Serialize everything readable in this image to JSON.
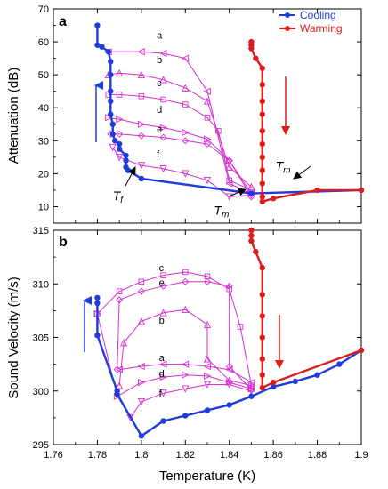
{
  "chart_data": [
    {
      "type": "line",
      "panel": "a",
      "xlabel": "",
      "ylabel": "Attenuation (dB)",
      "xlim": [
        1.76,
        1.9
      ],
      "ylim": [
        5,
        70
      ],
      "yticks": [
        10,
        20,
        30,
        40,
        50,
        60,
        70
      ],
      "legend": {
        "placement": "top-right",
        "entries": [
          {
            "name": "Cooling",
            "color": "#1f3bdc"
          },
          {
            "name": "Warming",
            "color": "#dd1d1d"
          }
        ]
      },
      "series": [
        {
          "name": "Cooling",
          "color": "#1f3bdc",
          "points": [
            [
              1.78,
              65
            ],
            [
              1.78,
              59
            ],
            [
              1.782,
              58.5
            ],
            [
              1.785,
              57
            ],
            [
              1.786,
              54
            ],
            [
              1.786,
              50
            ],
            [
              1.786,
              45
            ],
            [
              1.786,
              42
            ],
            [
              1.786,
              38
            ],
            [
              1.787,
              35
            ],
            [
              1.787,
              32
            ],
            [
              1.788,
              30
            ],
            [
              1.79,
              29
            ],
            [
              1.79,
              27.5
            ],
            [
              1.793,
              25.5
            ],
            [
              1.793,
              24
            ],
            [
              1.793,
              22
            ],
            [
              1.794,
              21
            ],
            [
              1.8,
              18.5
            ],
            [
              1.85,
              14
            ],
            [
              1.9,
              15
            ]
          ]
        },
        {
          "name": "Warming",
          "color": "#dd1d1d",
          "points": [
            [
              1.85,
              60
            ],
            [
              1.85,
              59
            ],
            [
              1.85,
              58
            ],
            [
              1.852,
              55
            ],
            [
              1.855,
              52
            ],
            [
              1.855,
              47
            ],
            [
              1.855,
              42
            ],
            [
              1.855,
              38
            ],
            [
              1.855,
              33
            ],
            [
              1.855,
              29
            ],
            [
              1.855,
              25
            ],
            [
              1.855,
              21
            ],
            [
              1.855,
              17
            ],
            [
              1.855,
              13
            ],
            [
              1.855,
              11.5
            ],
            [
              1.86,
              12.5
            ],
            [
              1.88,
              15
            ],
            [
              1.9,
              15
            ]
          ]
        },
        {
          "name": "a",
          "color": "#d62ed0",
          "marker": "triangle-left",
          "points": [
            [
              1.785,
              57
            ],
            [
              1.8,
              57
            ],
            [
              1.81,
              56.5
            ],
            [
              1.82,
              55
            ],
            [
              1.83,
              45
            ],
            [
              1.84,
              17
            ],
            [
              1.85,
              14
            ]
          ]
        },
        {
          "name": "b",
          "color": "#d62ed0",
          "marker": "triangle-up",
          "points": [
            [
              1.785,
              50
            ],
            [
              1.79,
              50.5
            ],
            [
              1.8,
              50
            ],
            [
              1.81,
              48.5
            ],
            [
              1.82,
              46
            ],
            [
              1.83,
              42
            ],
            [
              1.84,
              22
            ],
            [
              1.85,
              16
            ]
          ]
        },
        {
          "name": "c",
          "color": "#d62ed0",
          "marker": "square",
          "points": [
            [
              1.785,
              44
            ],
            [
              1.79,
              44
            ],
            [
              1.8,
              43.5
            ],
            [
              1.81,
              42.5
            ],
            [
              1.82,
              41
            ],
            [
              1.83,
              37
            ],
            [
              1.835,
              33
            ],
            [
              1.84,
              18
            ],
            [
              1.85,
              15
            ]
          ]
        },
        {
          "name": "d",
          "color": "#d62ed0",
          "marker": "triangle-right",
          "points": [
            [
              1.785,
              37
            ],
            [
              1.79,
              36.5
            ],
            [
              1.8,
              35
            ],
            [
              1.81,
              34
            ],
            [
              1.82,
              32.5
            ],
            [
              1.83,
              30.5
            ],
            [
              1.84,
              24
            ],
            [
              1.85,
              14
            ]
          ]
        },
        {
          "name": "e",
          "color": "#d62ed0",
          "marker": "diamond",
          "points": [
            [
              1.786,
              32
            ],
            [
              1.79,
              32
            ],
            [
              1.8,
              31.5
            ],
            [
              1.81,
              31
            ],
            [
              1.82,
              30
            ],
            [
              1.83,
              29
            ],
            [
              1.84,
              24
            ],
            [
              1.85,
              13
            ]
          ]
        },
        {
          "name": "f",
          "color": "#d62ed0",
          "marker": "triangle-down",
          "points": [
            [
              1.787,
              28
            ],
            [
              1.79,
              25
            ],
            [
              1.8,
              22.5
            ],
            [
              1.81,
              21.5
            ],
            [
              1.82,
              20
            ],
            [
              1.83,
              18
            ],
            [
              1.84,
              13
            ],
            [
              1.85,
              13.5
            ]
          ]
        }
      ],
      "annotations": [
        {
          "text": "a",
          "x": 1.807,
          "y": 61
        },
        {
          "text": "b",
          "x": 1.807,
          "y": 53.5
        },
        {
          "text": "c",
          "x": 1.807,
          "y": 46.5
        },
        {
          "text": "d",
          "x": 1.807,
          "y": 38.5
        },
        {
          "text": "e",
          "x": 1.807,
          "y": 32.5
        },
        {
          "text": "f",
          "x": 1.807,
          "y": 25
        },
        {
          "text": "T",
          "sub": "f",
          "x": 1.787,
          "y": 12
        },
        {
          "text": "T",
          "sub": "m'",
          "x": 1.833,
          "y": 7.5
        },
        {
          "text": "T",
          "sub": "m",
          "x": 1.861,
          "y": 21
        }
      ]
    },
    {
      "type": "line",
      "panel": "b",
      "xlabel": "Temperature (K)",
      "ylabel": "Sound Velocity (m/s)",
      "xlim": [
        1.76,
        1.9
      ],
      "ylim": [
        295,
        315
      ],
      "xticks": [
        1.76,
        1.78,
        1.8,
        1.82,
        1.84,
        1.86,
        1.88,
        1.9
      ],
      "xtick_labels": [
        "1.76",
        "1.78",
        "1.8",
        "1.82",
        "1.84",
        "1.86",
        "1.88",
        "1.9"
      ],
      "yticks": [
        295,
        300,
        305,
        310,
        315
      ],
      "series": [
        {
          "name": "Cooling",
          "color": "#1f3bdc",
          "points": [
            [
              1.78,
              308.7
            ],
            [
              1.78,
              308.2
            ],
            [
              1.78,
              305.2
            ],
            [
              1.789,
              300
            ],
            [
              1.789,
              299.7
            ],
            [
              1.8,
              295.8
            ],
            [
              1.81,
              297.2
            ],
            [
              1.82,
              297.7
            ],
            [
              1.83,
              298.2
            ],
            [
              1.84,
              298.7
            ],
            [
              1.85,
              299.5
            ],
            [
              1.86,
              300.4
            ],
            [
              1.87,
              300.9
            ],
            [
              1.88,
              301.5
            ],
            [
              1.89,
              302.5
            ],
            [
              1.9,
              303.8
            ]
          ]
        },
        {
          "name": "Warming",
          "color": "#dd1d1d",
          "points": [
            [
              1.85,
              315
            ],
            [
              1.85,
              314.5
            ],
            [
              1.85,
              314
            ],
            [
              1.852,
              313
            ],
            [
              1.855,
              311.5
            ],
            [
              1.855,
              309
            ],
            [
              1.855,
              307
            ],
            [
              1.855,
              305
            ],
            [
              1.855,
              303
            ],
            [
              1.855,
              301.5
            ],
            [
              1.855,
              300.3
            ],
            [
              1.86,
              300.8
            ],
            [
              1.9,
              303.8
            ]
          ]
        },
        {
          "name": "a",
          "color": "#d62ed0",
          "marker": "triangle-left",
          "points": [
            [
              1.79,
              302
            ],
            [
              1.8,
              302.3
            ],
            [
              1.81,
              302.5
            ],
            [
              1.82,
              302.5
            ],
            [
              1.83,
              302.3
            ],
            [
              1.84,
              302
            ],
            [
              1.85,
              300.8
            ]
          ]
        },
        {
          "name": "b",
          "color": "#d62ed0",
          "marker": "triangle-up",
          "points": [
            [
              1.79,
              300.5
            ],
            [
              1.792,
              304.5
            ],
            [
              1.8,
              306.5
            ],
            [
              1.81,
              307.3
            ],
            [
              1.82,
              307.6
            ],
            [
              1.83,
              306.2
            ],
            [
              1.83,
              303
            ],
            [
              1.84,
              301
            ],
            [
              1.85,
              300.5
            ]
          ]
        },
        {
          "name": "c",
          "color": "#d62ed0",
          "marker": "square",
          "points": [
            [
              1.78,
              307.2
            ],
            [
              1.79,
              309.3
            ],
            [
              1.8,
              310.2
            ],
            [
              1.81,
              310.8
            ],
            [
              1.82,
              311.1
            ],
            [
              1.83,
              310.7
            ],
            [
              1.84,
              309.5
            ],
            [
              1.845,
              306
            ],
            [
              1.85,
              300.5
            ],
            [
              1.85,
              300.2
            ]
          ]
        },
        {
          "name": "d",
          "color": "#d62ed0",
          "marker": "triangle-right",
          "points": [
            [
              1.78,
              307.2
            ],
            [
              1.789,
              299.5
            ],
            [
              1.8,
              300.8
            ],
            [
              1.81,
              301.3
            ],
            [
              1.82,
              301.5
            ],
            [
              1.83,
              301.4
            ],
            [
              1.84,
              300.8
            ],
            [
              1.85,
              300.2
            ]
          ]
        },
        {
          "name": "e",
          "color": "#d62ed0",
          "marker": "diamond",
          "points": [
            [
              1.789,
              302
            ],
            [
              1.79,
              308.5
            ],
            [
              1.8,
              309.3
            ],
            [
              1.81,
              309.8
            ],
            [
              1.82,
              310.2
            ],
            [
              1.83,
              310.2
            ],
            [
              1.84,
              309.8
            ],
            [
              1.84,
              302.3
            ],
            [
              1.85,
              300.1
            ]
          ]
        },
        {
          "name": "f",
          "color": "#d62ed0",
          "marker": "triangle-down",
          "points": [
            [
              1.795,
              297.5
            ],
            [
              1.8,
              299
            ],
            [
              1.81,
              299.8
            ],
            [
              1.82,
              300.2
            ],
            [
              1.83,
              300.6
            ],
            [
              1.84,
              300.6
            ],
            [
              1.85,
              300
            ]
          ]
        }
      ],
      "annotations": [
        {
          "text": "c",
          "x": 1.808,
          "y": 311.2
        },
        {
          "text": "e",
          "x": 1.808,
          "y": 309.8
        },
        {
          "text": "b",
          "x": 1.808,
          "y": 306.3
        },
        {
          "text": "a",
          "x": 1.808,
          "y": 302.8
        },
        {
          "text": "d",
          "x": 1.808,
          "y": 301.3
        },
        {
          "text": "f",
          "x": 1.808,
          "y": 299.5
        }
      ]
    }
  ]
}
